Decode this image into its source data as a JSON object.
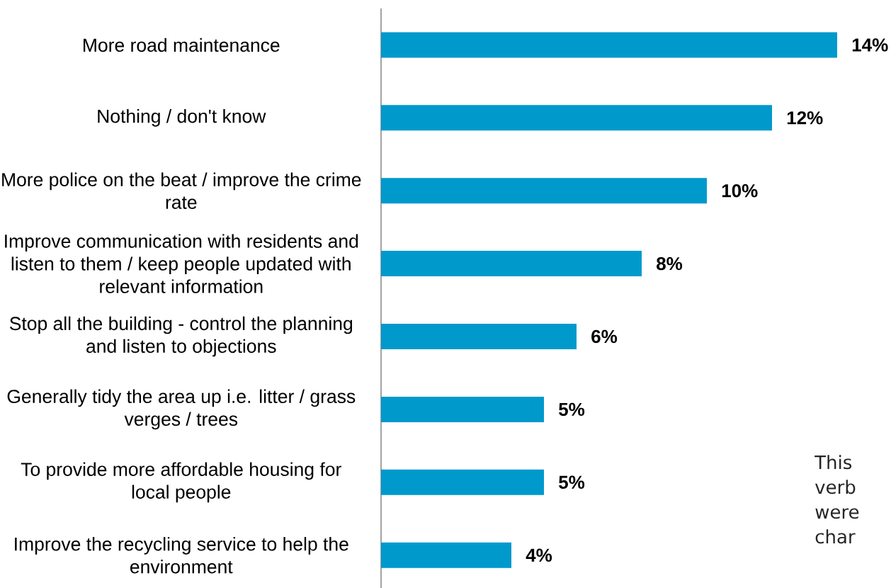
{
  "chart_data": {
    "type": "bar",
    "orientation": "horizontal",
    "categories": [
      "More road maintenance",
      "Nothing / don't know",
      "More police on the beat / improve the crime rate",
      "Improve communication with residents and listen to them / keep people updated with relevant information",
      "Stop all the building - control the planning and listen to objections",
      "Generally tidy the area up i.e. litter / grass verges / trees",
      "To provide more affordable housing for local people",
      "Improve the recycling service to help the environment"
    ],
    "values": [
      14,
      12,
      10,
      8,
      6,
      5,
      5,
      4
    ],
    "value_labels": [
      "14%",
      "12%",
      "10%",
      "8%",
      "6%",
      "5%",
      "5%",
      "4%"
    ],
    "color": "#0099cc",
    "annotations": [
      "This verb were char"
    ]
  }
}
